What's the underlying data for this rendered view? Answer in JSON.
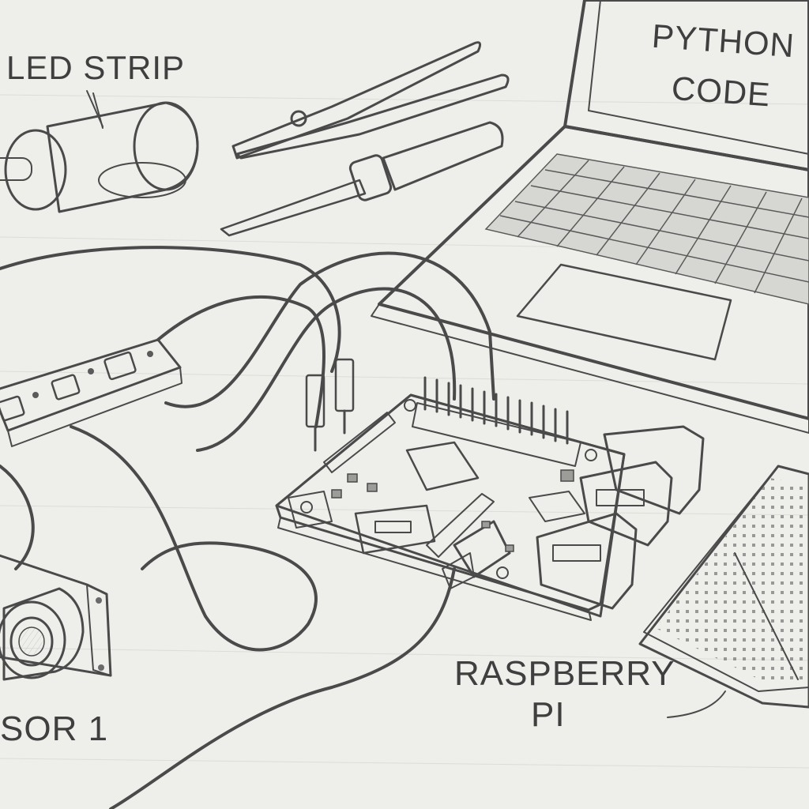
{
  "labels": {
    "led_strip": "LED STRIP",
    "python_code_line1": "PYTHON",
    "python_code_line2": "CODE",
    "raspberry_pi_line1": "RASPBERRY",
    "raspberry_pi_line2": "PI",
    "sensor": "SOR 1"
  }
}
